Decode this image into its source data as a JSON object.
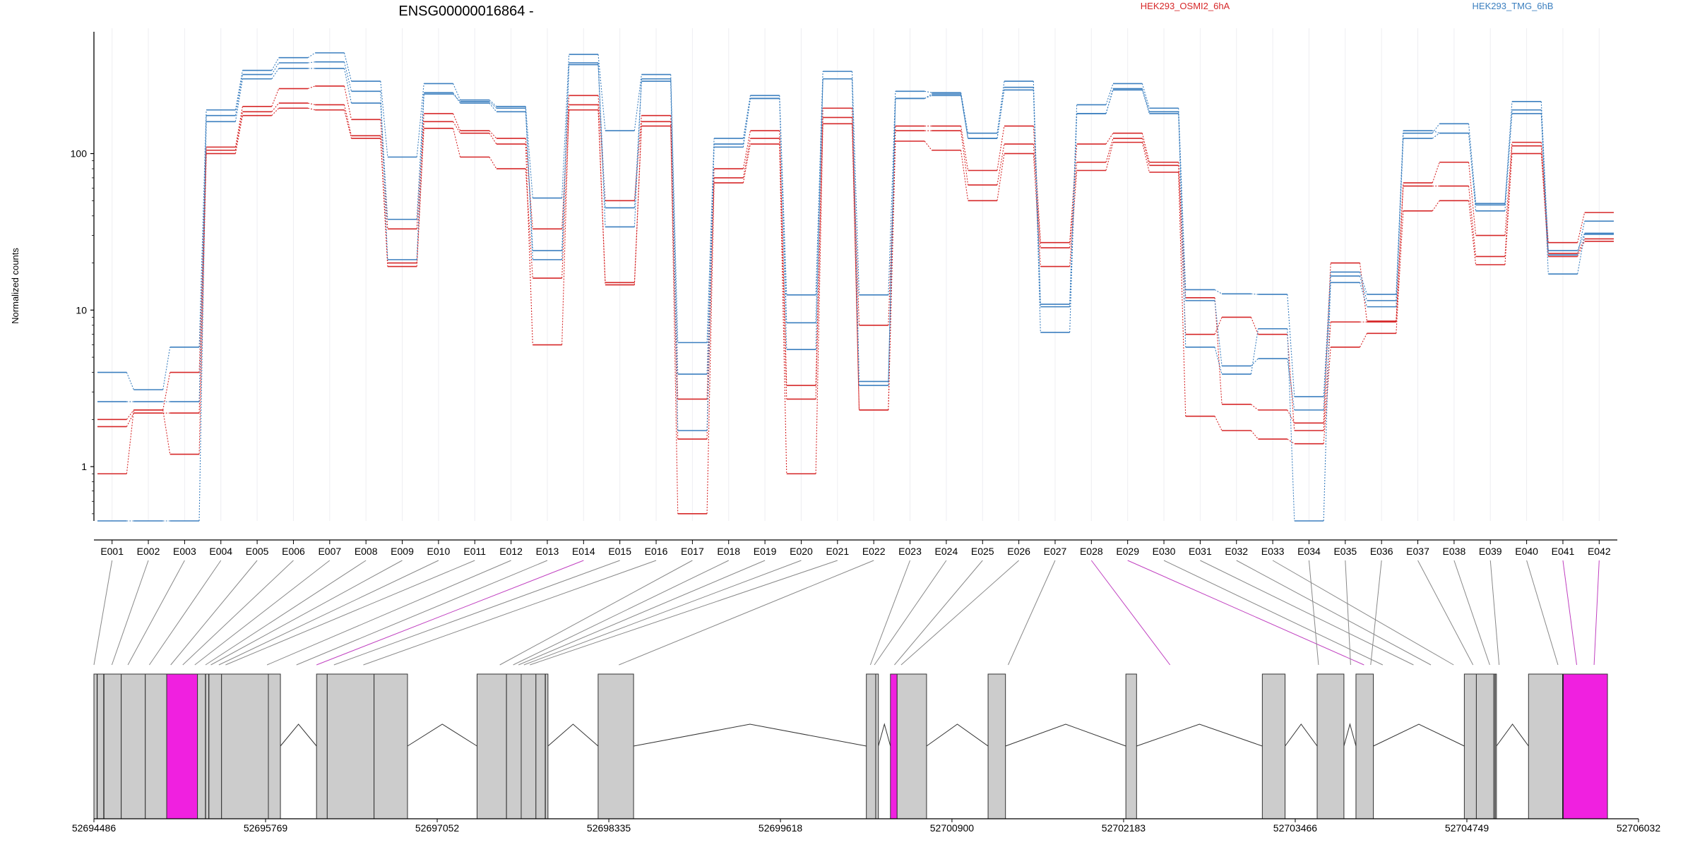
{
  "chart_data": {
    "type": "line",
    "title": "ENSG00000016864 -",
    "ylabel": "Normalized counts",
    "yscale": "log",
    "ylim": [
      0.45,
      600
    ],
    "yticks": [
      "1",
      "10",
      "100"
    ],
    "grid": "vertical-light",
    "legend_placement": "top",
    "categories": [
      "E001",
      "E002",
      "E003",
      "E004",
      "E005",
      "E006",
      "E007",
      "E008",
      "E009",
      "E010",
      "E011",
      "E012",
      "E013",
      "E014",
      "E015",
      "E016",
      "E017",
      "E018",
      "E019",
      "E020",
      "E021",
      "E022",
      "E023",
      "E024",
      "E025",
      "E026",
      "E027",
      "E028",
      "E029",
      "E030",
      "E031",
      "E032",
      "E033",
      "E034",
      "E035",
      "E036",
      "E037",
      "E038",
      "E039",
      "E040",
      "E041",
      "E042"
    ],
    "highlight_exons": [
      "E014",
      "E023",
      "E029",
      "E030",
      "E041",
      "E042"
    ],
    "series": [
      {
        "name": "HEK293_OSMI2_6hA",
        "group": 0,
        "values": [
          0.9,
          2.3,
          1.2,
          100,
          175,
          195,
          190,
          125,
          19,
          145,
          95,
          80,
          16,
          190,
          14.5,
          150,
          0.5,
          65,
          115,
          0.9,
          155,
          2.3,
          120,
          105,
          50,
          100,
          19,
          78,
          118,
          76,
          2.1,
          1.7,
          1.5,
          1.4,
          5.8,
          7.1,
          43,
          50,
          19.5,
          100,
          22,
          27.5
        ]
      },
      {
        "name": "HEK293_OSMI2_6hA",
        "group": 0,
        "values": [
          1.8,
          2.2,
          2.2,
          105,
          185,
          210,
          205,
          130,
          20,
          160,
          135,
          115,
          6,
          205,
          15,
          160,
          1.5,
          70,
          125,
          2.7,
          170,
          8,
          140,
          140,
          63,
          115,
          25,
          88,
          125,
          84,
          7,
          9,
          7,
          1.7,
          8.4,
          8.4,
          62,
          62,
          22,
          112,
          23,
          28.5
        ]
      },
      {
        "name": "HEK293_OSMI2_6hA",
        "group": 0,
        "values": [
          2,
          2.3,
          4,
          110,
          200,
          260,
          270,
          165,
          33,
          180,
          140,
          125,
          33,
          235,
          50,
          175,
          2.7,
          80,
          140,
          3.3,
          195,
          2.3,
          150,
          150,
          78,
          150,
          27,
          115,
          135,
          88,
          12,
          2.5,
          2.3,
          1.9,
          20,
          8.5,
          65,
          88,
          30,
          118,
          27,
          42
        ]
      },
      {
        "name": "HEK293_TMG_6hB",
        "group": 1,
        "values": [
          4,
          3.1,
          5.8,
          190,
          340,
          410,
          440,
          290,
          95,
          280,
          220,
          200,
          52,
          430,
          140,
          320,
          6.2,
          125,
          235,
          12.5,
          335,
          12.5,
          250,
          245,
          135,
          290,
          10.5,
          205,
          280,
          195,
          13.5,
          12.7,
          12.6,
          2.8,
          17.5,
          12.6,
          135,
          155,
          48,
          215,
          24,
          31
        ]
      },
      {
        "name": "HEK293_TMG_6hB",
        "group": 1,
        "values": [
          2.6,
          2.6,
          2.6,
          160,
          300,
          350,
          350,
          210,
          38,
          245,
          210,
          185,
          24,
          370,
          45,
          290,
          3.9,
          110,
          225,
          8.3,
          300,
          3.3,
          225,
          235,
          125,
          255,
          7.2,
          180,
          255,
          180,
          11.5,
          4.4,
          4.9,
          2.3,
          15,
          10.5,
          125,
          135,
          43,
          190,
          17,
          30.5
        ]
      },
      {
        "name": "HEK293_TMG_6hB",
        "group": 1,
        "values": [
          0.45,
          0.45,
          0.45,
          175,
          320,
          380,
          385,
          250,
          21,
          240,
          215,
          195,
          21,
          380,
          34,
          300,
          1.7,
          115,
          225,
          5.6,
          300,
          3.5,
          225,
          240,
          125,
          265,
          10.9,
          180,
          260,
          185,
          5.8,
          3.9,
          7.6,
          0.45,
          16.5,
          11.5,
          140,
          135,
          47,
          180,
          22.5,
          37
        ]
      }
    ],
    "legend": [
      {
        "label": "HEK293_OSMI2_6hA",
        "color": "#d62728"
      },
      {
        "label": "HEK293_TMG_6hB",
        "color": "#3b7fbf"
      }
    ],
    "gene_model": {
      "coordinate_ticks": [
        "52694486",
        "52695769",
        "52697052",
        "52698335",
        "52699618",
        "52700900",
        "52702183",
        "52703466",
        "52704749",
        "52706032"
      ],
      "coord_start": 52694486,
      "coord_end": 52706032,
      "exon_blocks": [
        {
          "start": 52694486,
          "end": 52694690
        },
        {
          "start": 52694690,
          "end": 52694870
        },
        {
          "start": 52694870,
          "end": 52695030
        },
        {
          "start": 52695030,
          "end": 52695260
        },
        {
          "start": 52695260,
          "end": 52695440
        },
        {
          "start": 52695440,
          "end": 52695790
        },
        {
          "start": 52695790,
          "end": 52695880
        },
        {
          "start": 52696150,
          "end": 52696230
        },
        {
          "start": 52696230,
          "end": 52696580
        },
        {
          "start": 52696580,
          "end": 52696830
        },
        {
          "start": 52697350,
          "end": 52697570
        },
        {
          "start": 52697570,
          "end": 52697680
        },
        {
          "start": 52697680,
          "end": 52697790
        },
        {
          "start": 52697790,
          "end": 52697880
        },
        {
          "start": 52698255,
          "end": 52698520
        },
        {
          "start": 52700260,
          "end": 52700330
        },
        {
          "start": 52700330,
          "end": 52700350
        },
        {
          "start": 52700440,
          "end": 52700490
        },
        {
          "start": 52700490,
          "end": 52700710
        },
        {
          "start": 52701170,
          "end": 52701300
        },
        {
          "start": 52702200,
          "end": 52702280
        },
        {
          "start": 52703220,
          "end": 52703390
        },
        {
          "start": 52703630,
          "end": 52703830
        },
        {
          "start": 52703920,
          "end": 52704050
        },
        {
          "start": 52704730,
          "end": 52704820
        },
        {
          "start": 52704820,
          "end": 52704950
        },
        {
          "start": 52704950,
          "end": 52704970
        },
        {
          "start": 52705210,
          "end": 52705470
        },
        {
          "start": 52705470,
          "end": 52705800
        }
      ],
      "highlight_blocks": [
        3,
        17,
        28
      ],
      "inner_lines": [
        52694510,
        52694560,
        52694560,
        52695320,
        52695345,
        52697860,
        52704960,
        52705465
      ],
      "connector_targets": [
        52694486,
        52694620,
        52694740,
        52694900,
        52695060,
        52695150,
        52695240,
        52695320,
        52695360,
        52695420,
        52695470,
        52695780,
        52696000,
        52696150,
        52696280,
        52696500,
        52697520,
        52697620,
        52697660,
        52697700,
        52697745,
        52698410,
        52700290,
        52700320,
        52700470,
        52700520,
        52701320,
        52702530,
        52703980,
        52704120,
        52704350,
        52704480,
        52704650,
        52703640,
        52703880,
        52704030,
        52704795,
        52704920,
        52704990,
        52705430,
        52705570,
        52705700
      ],
      "highlight_connectors": [
        13,
        27,
        28,
        40,
        41
      ]
    }
  }
}
